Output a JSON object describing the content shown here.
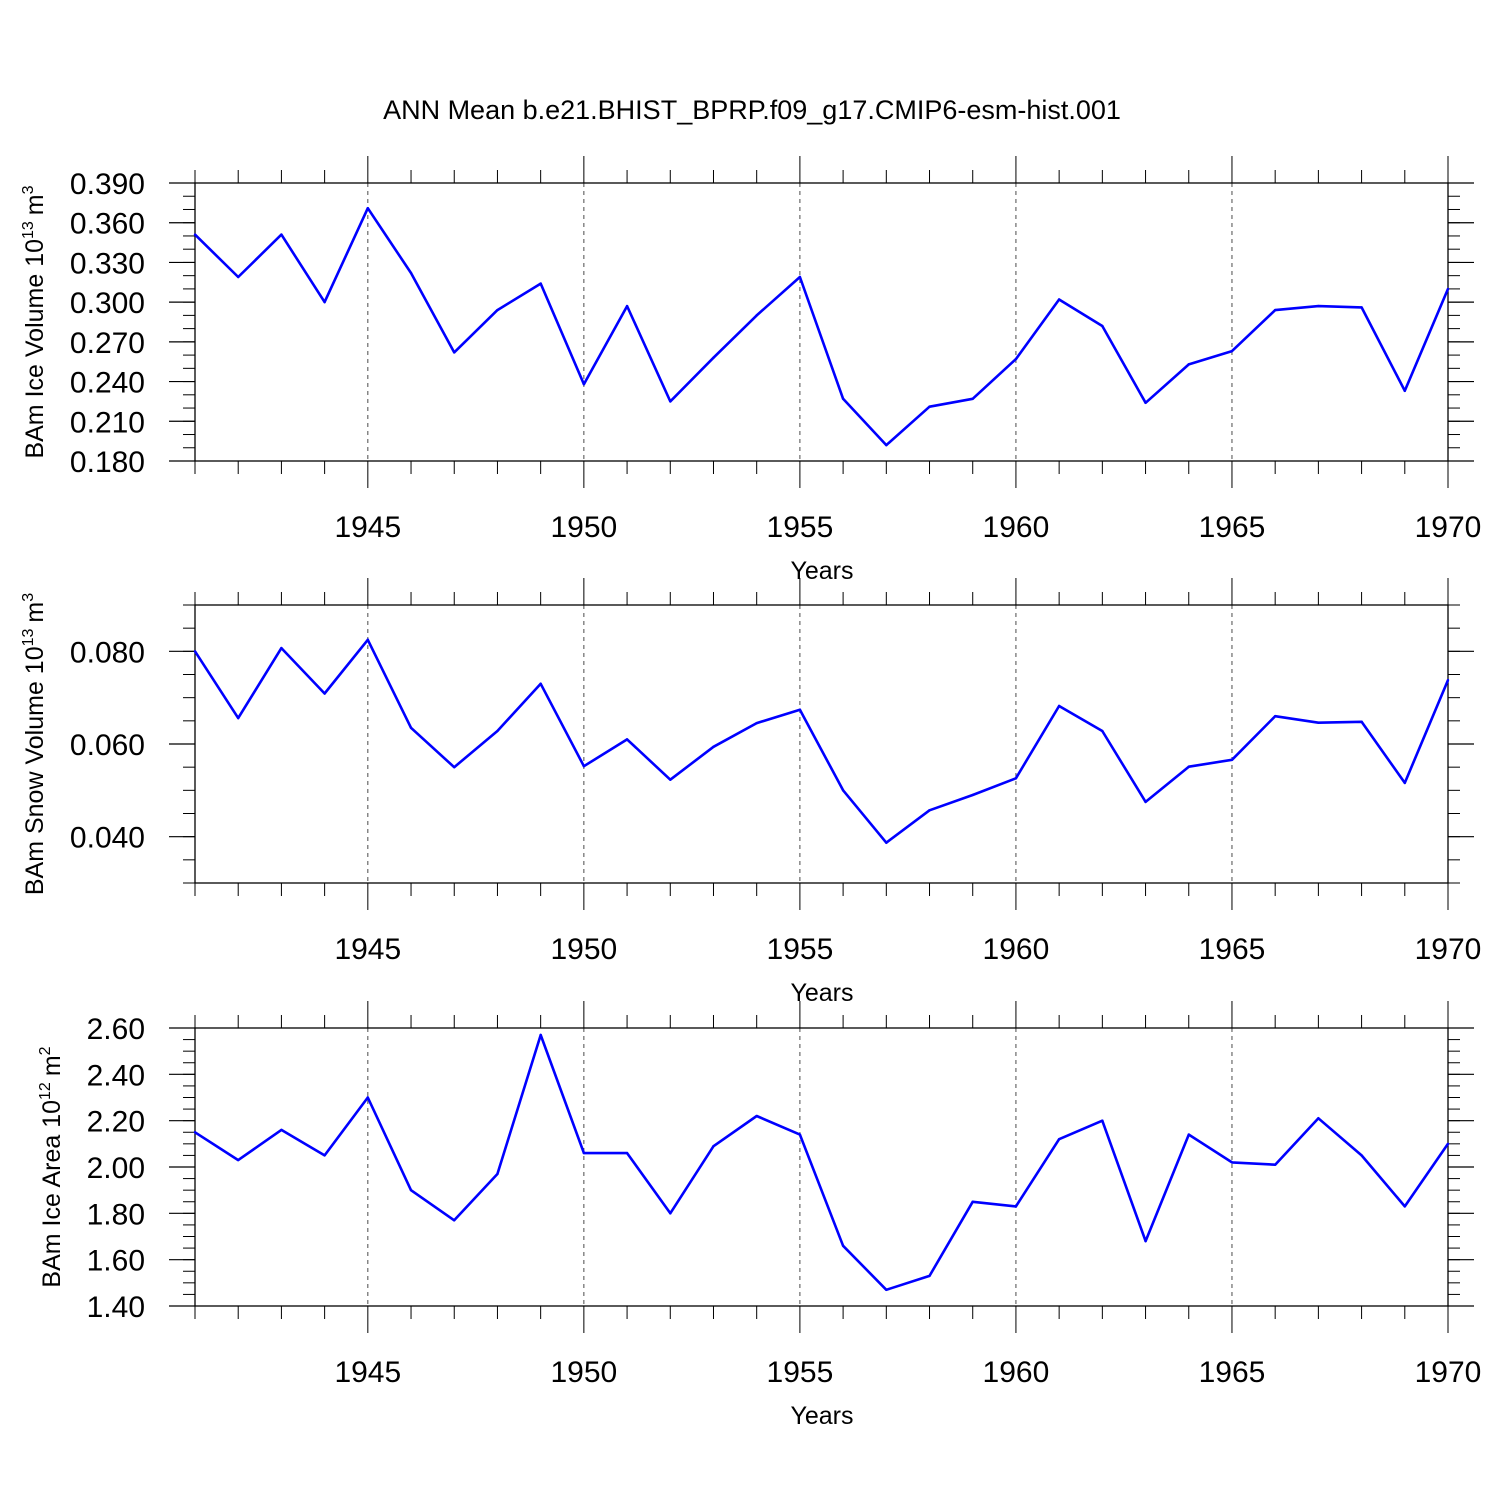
{
  "title": "ANN Mean b.e21.BHIST_BPRP.f09_g17.CMIP6-esm-hist.001",
  "colors": {
    "series_line": "#0000ff",
    "axes": "#000000",
    "grid": "#000000"
  },
  "chart_data": [
    {
      "type": "line",
      "ylabel_main": "BAm Ice Volume 10",
      "ylabel_exp": "13",
      "ylabel_unit": "m",
      "ylabel_unit_exp": "3",
      "xlabel": "Years",
      "xlim": [
        1941,
        1970
      ],
      "ylim": [
        0.18,
        0.39
      ],
      "yticks": [
        "0.180",
        "0.210",
        "0.240",
        "0.270",
        "0.300",
        "0.330",
        "0.360",
        "0.390"
      ],
      "ytick_values": [
        0.18,
        0.21,
        0.24,
        0.27,
        0.3,
        0.33,
        0.36,
        0.39
      ],
      "y_minor_step": 0.01,
      "xticks": [
        "1945",
        "1950",
        "1955",
        "1960",
        "1965",
        "1970"
      ],
      "xtick_values": [
        1945,
        1950,
        1955,
        1960,
        1965,
        1970
      ],
      "grid": "vertical dashed at major x ticks",
      "x": [
        1941,
        1942,
        1943,
        1944,
        1945,
        1946,
        1947,
        1948,
        1949,
        1950,
        1951,
        1952,
        1953,
        1954,
        1955,
        1956,
        1957,
        1958,
        1959,
        1960,
        1961,
        1962,
        1963,
        1964,
        1965,
        1966,
        1967,
        1968,
        1969,
        1970
      ],
      "values": [
        0.351,
        0.319,
        0.351,
        0.3,
        0.371,
        0.322,
        0.262,
        0.294,
        0.314,
        0.238,
        0.297,
        0.225,
        0.258,
        0.29,
        0.319,
        0.227,
        0.192,
        0.221,
        0.227,
        0.257,
        0.302,
        0.282,
        0.224,
        0.253,
        0.263,
        0.294,
        0.297,
        0.296,
        0.233,
        0.31
      ]
    },
    {
      "type": "line",
      "ylabel_main": "BAm Snow Volume 10",
      "ylabel_exp": "13",
      "ylabel_unit": "m",
      "ylabel_unit_exp": "3",
      "xlabel": "Years",
      "xlim": [
        1941,
        1970
      ],
      "ylim": [
        0.03,
        0.09
      ],
      "yticks": [
        "0.040",
        "0.060",
        "0.080"
      ],
      "ytick_values": [
        0.04,
        0.06,
        0.08
      ],
      "y_minor_step": 0.005,
      "xticks": [
        "1945",
        "1950",
        "1955",
        "1960",
        "1965",
        "1970"
      ],
      "xtick_values": [
        1945,
        1950,
        1955,
        1960,
        1965,
        1970
      ],
      "grid": "vertical dashed at major x ticks",
      "x": [
        1941,
        1942,
        1943,
        1944,
        1945,
        1946,
        1947,
        1948,
        1949,
        1950,
        1951,
        1952,
        1953,
        1954,
        1955,
        1956,
        1957,
        1958,
        1959,
        1960,
        1961,
        1962,
        1963,
        1964,
        1965,
        1966,
        1967,
        1968,
        1969,
        1970
      ],
      "values": [
        0.08,
        0.0656,
        0.0807,
        0.0709,
        0.0825,
        0.0635,
        0.055,
        0.0628,
        0.073,
        0.0552,
        0.061,
        0.0523,
        0.0594,
        0.0645,
        0.0674,
        0.05,
        0.0387,
        0.0457,
        0.049,
        0.0526,
        0.0682,
        0.0628,
        0.0475,
        0.0551,
        0.0566,
        0.066,
        0.0646,
        0.0648,
        0.0516,
        0.0738
      ]
    },
    {
      "type": "line",
      "ylabel_main": "BAm Ice Area 10",
      "ylabel_exp": "12",
      "ylabel_unit": "m",
      "ylabel_unit_exp": "2",
      "xlabel": "Years",
      "xlim": [
        1941,
        1970
      ],
      "ylim": [
        1.4,
        2.6
      ],
      "yticks": [
        "1.40",
        "1.60",
        "1.80",
        "2.00",
        "2.20",
        "2.40",
        "2.60"
      ],
      "ytick_values": [
        1.4,
        1.6,
        1.8,
        2.0,
        2.2,
        2.4,
        2.6
      ],
      "y_minor_step": 0.05,
      "xticks": [
        "1945",
        "1950",
        "1955",
        "1960",
        "1965",
        "1970"
      ],
      "xtick_values": [
        1945,
        1950,
        1955,
        1960,
        1965,
        1970
      ],
      "grid": "vertical dashed at major x ticks",
      "x": [
        1941,
        1942,
        1943,
        1944,
        1945,
        1946,
        1947,
        1948,
        1949,
        1950,
        1951,
        1952,
        1953,
        1954,
        1955,
        1956,
        1957,
        1958,
        1959,
        1960,
        1961,
        1962,
        1963,
        1964,
        1965,
        1966,
        1967,
        1968,
        1969,
        1970
      ],
      "values": [
        2.15,
        2.03,
        2.16,
        2.05,
        2.3,
        1.9,
        1.77,
        1.97,
        2.57,
        2.06,
        2.06,
        1.8,
        2.09,
        2.22,
        2.14,
        1.66,
        1.47,
        1.53,
        1.85,
        1.83,
        2.12,
        2.2,
        1.68,
        2.14,
        2.02,
        2.01,
        2.21,
        2.05,
        1.83,
        2.1
      ]
    }
  ]
}
